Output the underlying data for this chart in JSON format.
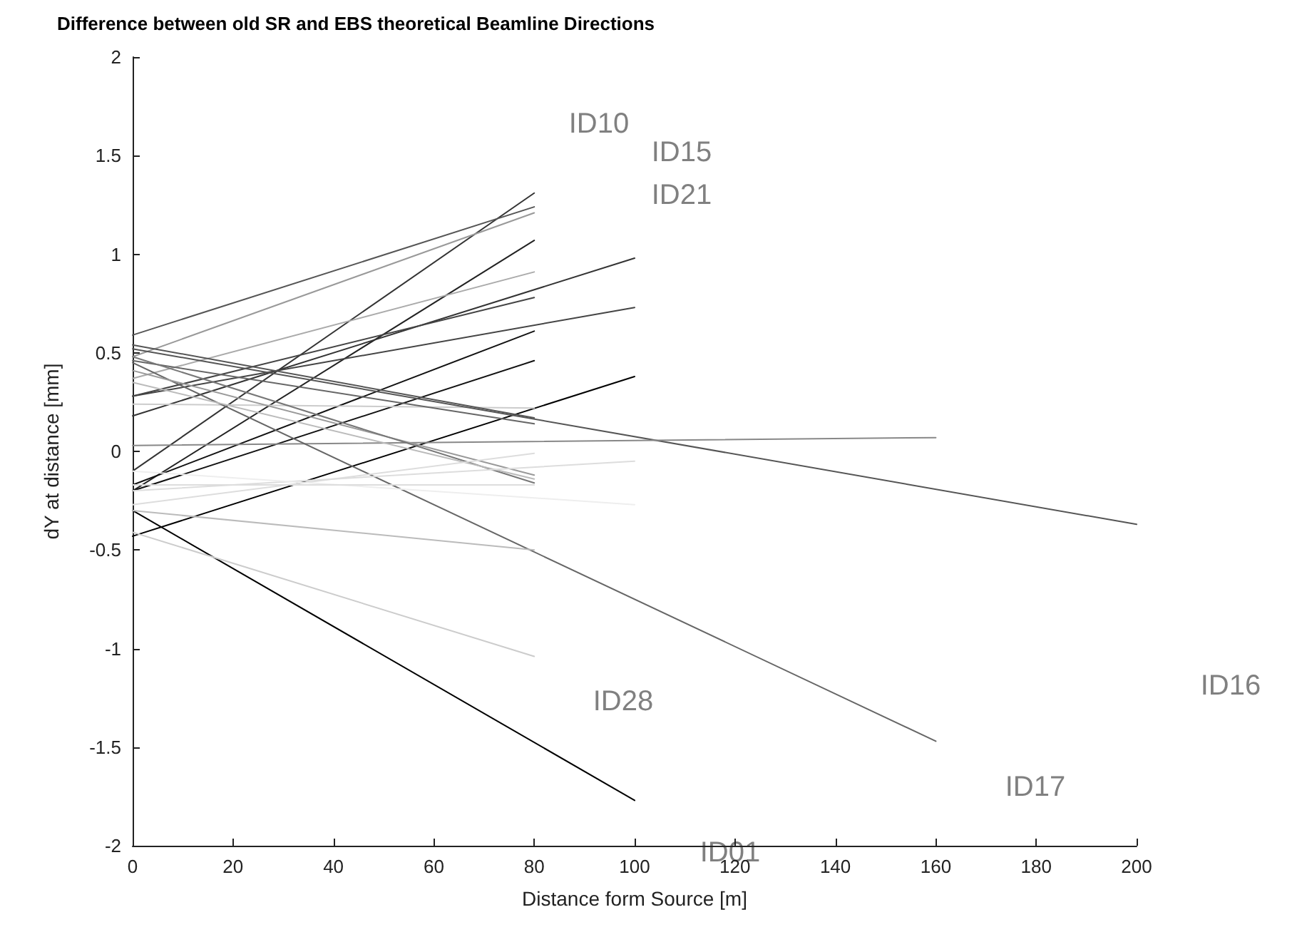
{
  "chart_data": {
    "type": "line",
    "title": "Difference between old SR and EBS theoretical Beamline Directions",
    "xlabel": "Distance form Source [m]",
    "ylabel": "dY at distance [mm]",
    "xlim": [
      0,
      200
    ],
    "xticks": [
      0,
      20,
      40,
      60,
      80,
      100,
      120,
      140,
      160,
      180,
      200
    ],
    "ylim": [
      -2,
      2
    ],
    "yticks": [
      -2,
      -1.5,
      -1,
      -0.5,
      0,
      0.5,
      1,
      1.5,
      2
    ],
    "grid": false,
    "marker": "none",
    "line_style": "solid",
    "series": [
      {
        "color": "#333333",
        "x": [
          0,
          80
        ],
        "values": [
          -0.1,
          1.31
        ]
      },
      {
        "color": "#555555",
        "x": [
          0,
          80
        ],
        "values": [
          0.59,
          1.24
        ]
      },
      {
        "color": "#999999",
        "x": [
          0,
          80
        ],
        "values": [
          0.48,
          1.21
        ]
      },
      {
        "color": "#222222",
        "x": [
          0,
          80
        ],
        "values": [
          -0.2,
          1.07
        ]
      },
      {
        "color": "#aaaaaa",
        "x": [
          0,
          80
        ],
        "values": [
          0.37,
          0.91
        ]
      },
      {
        "color": "#333333",
        "x": [
          0,
          100
        ],
        "values": [
          0.18,
          0.98
        ]
      },
      {
        "color": "#444444",
        "x": [
          0,
          80
        ],
        "values": [
          0.28,
          0.78
        ]
      },
      {
        "color": "#444444",
        "x": [
          0,
          100
        ],
        "values": [
          0.28,
          0.73
        ]
      },
      {
        "color": "#111111",
        "x": [
          0,
          80
        ],
        "values": [
          -0.17,
          0.61
        ]
      },
      {
        "color": "#111111",
        "x": [
          0,
          80
        ],
        "values": [
          -0.2,
          0.46
        ]
      },
      {
        "color": "#000000",
        "x": [
          0,
          100
        ],
        "values": [
          -0.43,
          0.38
        ]
      },
      {
        "color": "#cccccc",
        "x": [
          0,
          80
        ],
        "values": [
          0.24,
          0.22
        ]
      },
      {
        "color": "#555555",
        "x": [
          0,
          80
        ],
        "values": [
          0.54,
          0.17
        ]
      },
      {
        "color": "#666666",
        "x": [
          0,
          80
        ],
        "values": [
          0.46,
          0.14
        ]
      },
      {
        "color": "#555555",
        "x": [
          0,
          200
        ],
        "values": [
          0.52,
          -0.37
        ]
      },
      {
        "color": "#888888",
        "x": [
          0,
          160
        ],
        "values": [
          0.03,
          0.07
        ]
      },
      {
        "color": "#666666",
        "x": [
          0,
          160
        ],
        "values": [
          0.45,
          -1.47
        ]
      },
      {
        "color": "#000000",
        "x": [
          0,
          100
        ],
        "values": [
          -0.3,
          -1.77
        ]
      },
      {
        "color": "#cccccc",
        "x": [
          0,
          80
        ],
        "values": [
          -0.41,
          -1.04
        ]
      },
      {
        "color": "#bbbbbb",
        "x": [
          0,
          80
        ],
        "values": [
          -0.3,
          -0.5
        ]
      },
      {
        "color": "#999999",
        "x": [
          0,
          80
        ],
        "values": [
          0.41,
          -0.12
        ]
      },
      {
        "color": "#777777",
        "x": [
          0,
          80
        ],
        "values": [
          0.48,
          -0.16
        ]
      },
      {
        "color": "#bbbbbb",
        "x": [
          0,
          80
        ],
        "values": [
          0.35,
          -0.14
        ]
      },
      {
        "color": "#dddddd",
        "x": [
          0,
          80
        ],
        "values": [
          -0.27,
          -0.01
        ]
      },
      {
        "color": "#dddddd",
        "x": [
          0,
          100
        ],
        "values": [
          -0.2,
          -0.05
        ]
      },
      {
        "color": "#eeeeee",
        "x": [
          0,
          100
        ],
        "values": [
          -0.1,
          -0.27
        ]
      },
      {
        "color": "#dddddd",
        "x": [
          0,
          80
        ],
        "values": [
          -0.17,
          -0.17
        ]
      }
    ],
    "annotations": [
      "ID10",
      "ID15",
      "ID21",
      "ID16",
      "ID28",
      "ID17",
      "ID01"
    ]
  }
}
